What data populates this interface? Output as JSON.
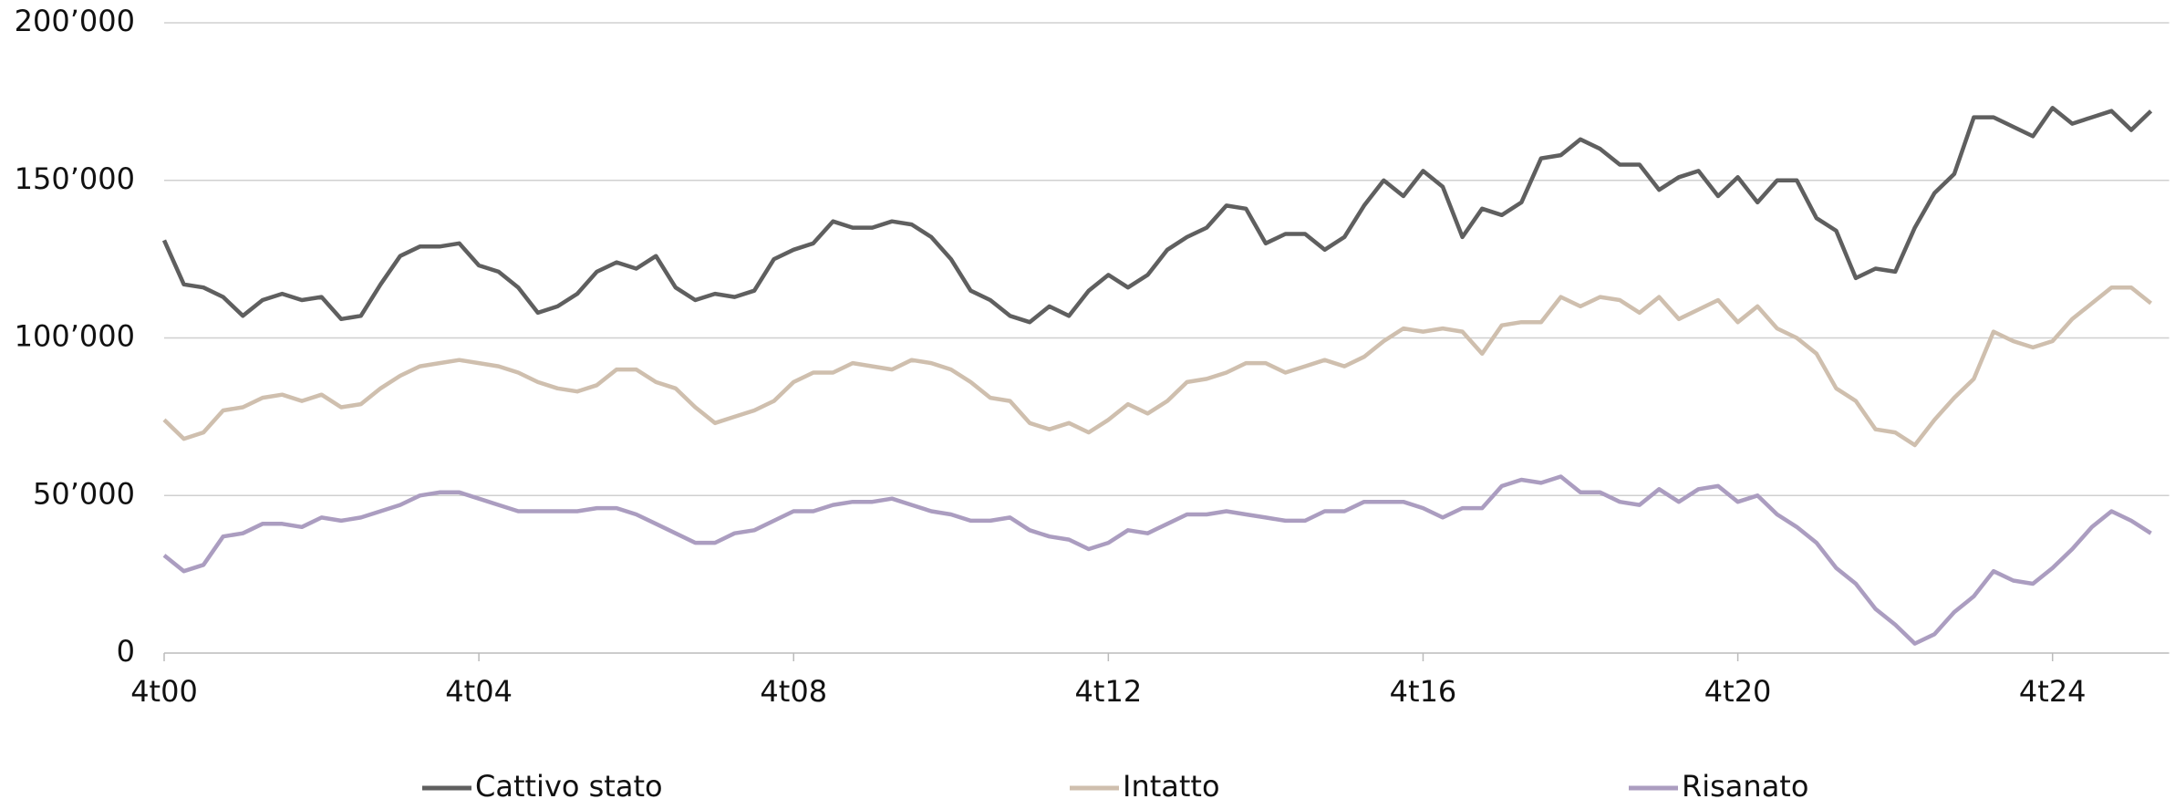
{
  "chart_data": {
    "type": "line",
    "categories": [
      "4t00",
      null,
      null,
      null,
      null,
      null,
      null,
      null,
      null,
      null,
      null,
      null,
      null,
      null,
      null,
      null,
      "4t04",
      null,
      null,
      null,
      null,
      null,
      null,
      null,
      null,
      null,
      null,
      null,
      null,
      null,
      null,
      null,
      "4t08",
      null,
      null,
      null,
      null,
      null,
      null,
      null,
      null,
      null,
      null,
      null,
      null,
      null,
      null,
      null,
      "4t12",
      null,
      null,
      null,
      null,
      null,
      null,
      null,
      null,
      null,
      null,
      null,
      null,
      null,
      null,
      null,
      "4t16",
      null,
      null,
      null,
      null,
      null,
      null,
      null,
      null,
      null,
      null,
      null,
      null,
      null,
      null,
      null,
      "4t20",
      null,
      null,
      null,
      null,
      null,
      null,
      null,
      null,
      null,
      null,
      null,
      null,
      null,
      null,
      null,
      "4t24",
      null,
      null,
      null,
      null,
      null
    ],
    "series": [
      {
        "name": "Cattivo stato",
        "color": "#5f5f5f",
        "values": [
          131000,
          117000,
          116000,
          113000,
          107000,
          112000,
          114000,
          112000,
          113000,
          106000,
          107000,
          117000,
          126000,
          129000,
          129000,
          130000,
          123000,
          121000,
          116000,
          108000,
          110000,
          114000,
          121000,
          124000,
          122000,
          126000,
          116000,
          112000,
          114000,
          113000,
          115000,
          125000,
          128000,
          130000,
          137000,
          135000,
          135000,
          137000,
          136000,
          132000,
          125000,
          115000,
          112000,
          107000,
          105000,
          110000,
          107000,
          115000,
          120000,
          116000,
          120000,
          128000,
          132000,
          135000,
          142000,
          141000,
          130000,
          133000,
          133000,
          128000,
          132000,
          142000,
          150000,
          145000,
          153000,
          148000,
          132000,
          141000,
          139000,
          143000,
          157000,
          158000,
          163000,
          160000,
          155000,
          155000,
          147000,
          151000,
          153000,
          145000,
          151000,
          143000,
          150000,
          150000,
          138000,
          134000,
          119000,
          122000,
          121000,
          135000,
          146000,
          152000,
          170000,
          170000,
          167000,
          164000,
          173000,
          168000,
          170000,
          172000,
          166000,
          172000
        ]
      },
      {
        "name": "Intatto",
        "color": "#cfbfae",
        "values": [
          74000,
          68000,
          70000,
          77000,
          78000,
          81000,
          82000,
          80000,
          82000,
          78000,
          79000,
          84000,
          88000,
          91000,
          92000,
          93000,
          92000,
          91000,
          89000,
          86000,
          84000,
          83000,
          85000,
          90000,
          90000,
          86000,
          84000,
          78000,
          73000,
          75000,
          77000,
          80000,
          86000,
          89000,
          89000,
          92000,
          91000,
          90000,
          93000,
          92000,
          90000,
          86000,
          81000,
          80000,
          73000,
          71000,
          73000,
          70000,
          74000,
          79000,
          76000,
          80000,
          86000,
          87000,
          89000,
          92000,
          92000,
          89000,
          91000,
          93000,
          91000,
          94000,
          99000,
          103000,
          102000,
          103000,
          102000,
          95000,
          104000,
          105000,
          105000,
          113000,
          110000,
          113000,
          112000,
          108000,
          113000,
          106000,
          109000,
          112000,
          105000,
          110000,
          103000,
          100000,
          95000,
          84000,
          80000,
          71000,
          70000,
          66000,
          74000,
          81000,
          87000,
          102000,
          99000,
          97000,
          99000,
          106000,
          111000,
          116000,
          116000,
          111000
        ]
      },
      {
        "name": "Risanato",
        "color": "#ab9dc0",
        "values": [
          31000,
          26000,
          28000,
          37000,
          38000,
          41000,
          41000,
          40000,
          43000,
          42000,
          43000,
          45000,
          47000,
          50000,
          51000,
          51000,
          49000,
          47000,
          45000,
          45000,
          45000,
          45000,
          46000,
          46000,
          44000,
          41000,
          38000,
          35000,
          35000,
          38000,
          39000,
          42000,
          45000,
          45000,
          47000,
          48000,
          48000,
          49000,
          47000,
          45000,
          44000,
          42000,
          42000,
          43000,
          39000,
          37000,
          36000,
          33000,
          35000,
          39000,
          38000,
          41000,
          44000,
          44000,
          45000,
          44000,
          43000,
          42000,
          42000,
          45000,
          45000,
          48000,
          48000,
          48000,
          46000,
          43000,
          46000,
          46000,
          53000,
          55000,
          54000,
          56000,
          51000,
          51000,
          48000,
          47000,
          52000,
          48000,
          52000,
          53000,
          48000,
          50000,
          44000,
          40000,
          35000,
          27000,
          22000,
          14000,
          9000,
          3000,
          6000,
          13000,
          18000,
          26000,
          23000,
          22000,
          27000,
          33000,
          40000,
          45000,
          42000,
          38000
        ]
      }
    ],
    "ylim": [
      0,
      200000
    ],
    "yticks": [
      0,
      {
        "value": 50000,
        "label": "50’000"
      },
      {
        "value": 100000,
        "label": "100’000"
      },
      {
        "value": 150000,
        "label": "150’000"
      },
      {
        "value": 200000,
        "label": "200’000"
      }
    ],
    "grid": true
  }
}
